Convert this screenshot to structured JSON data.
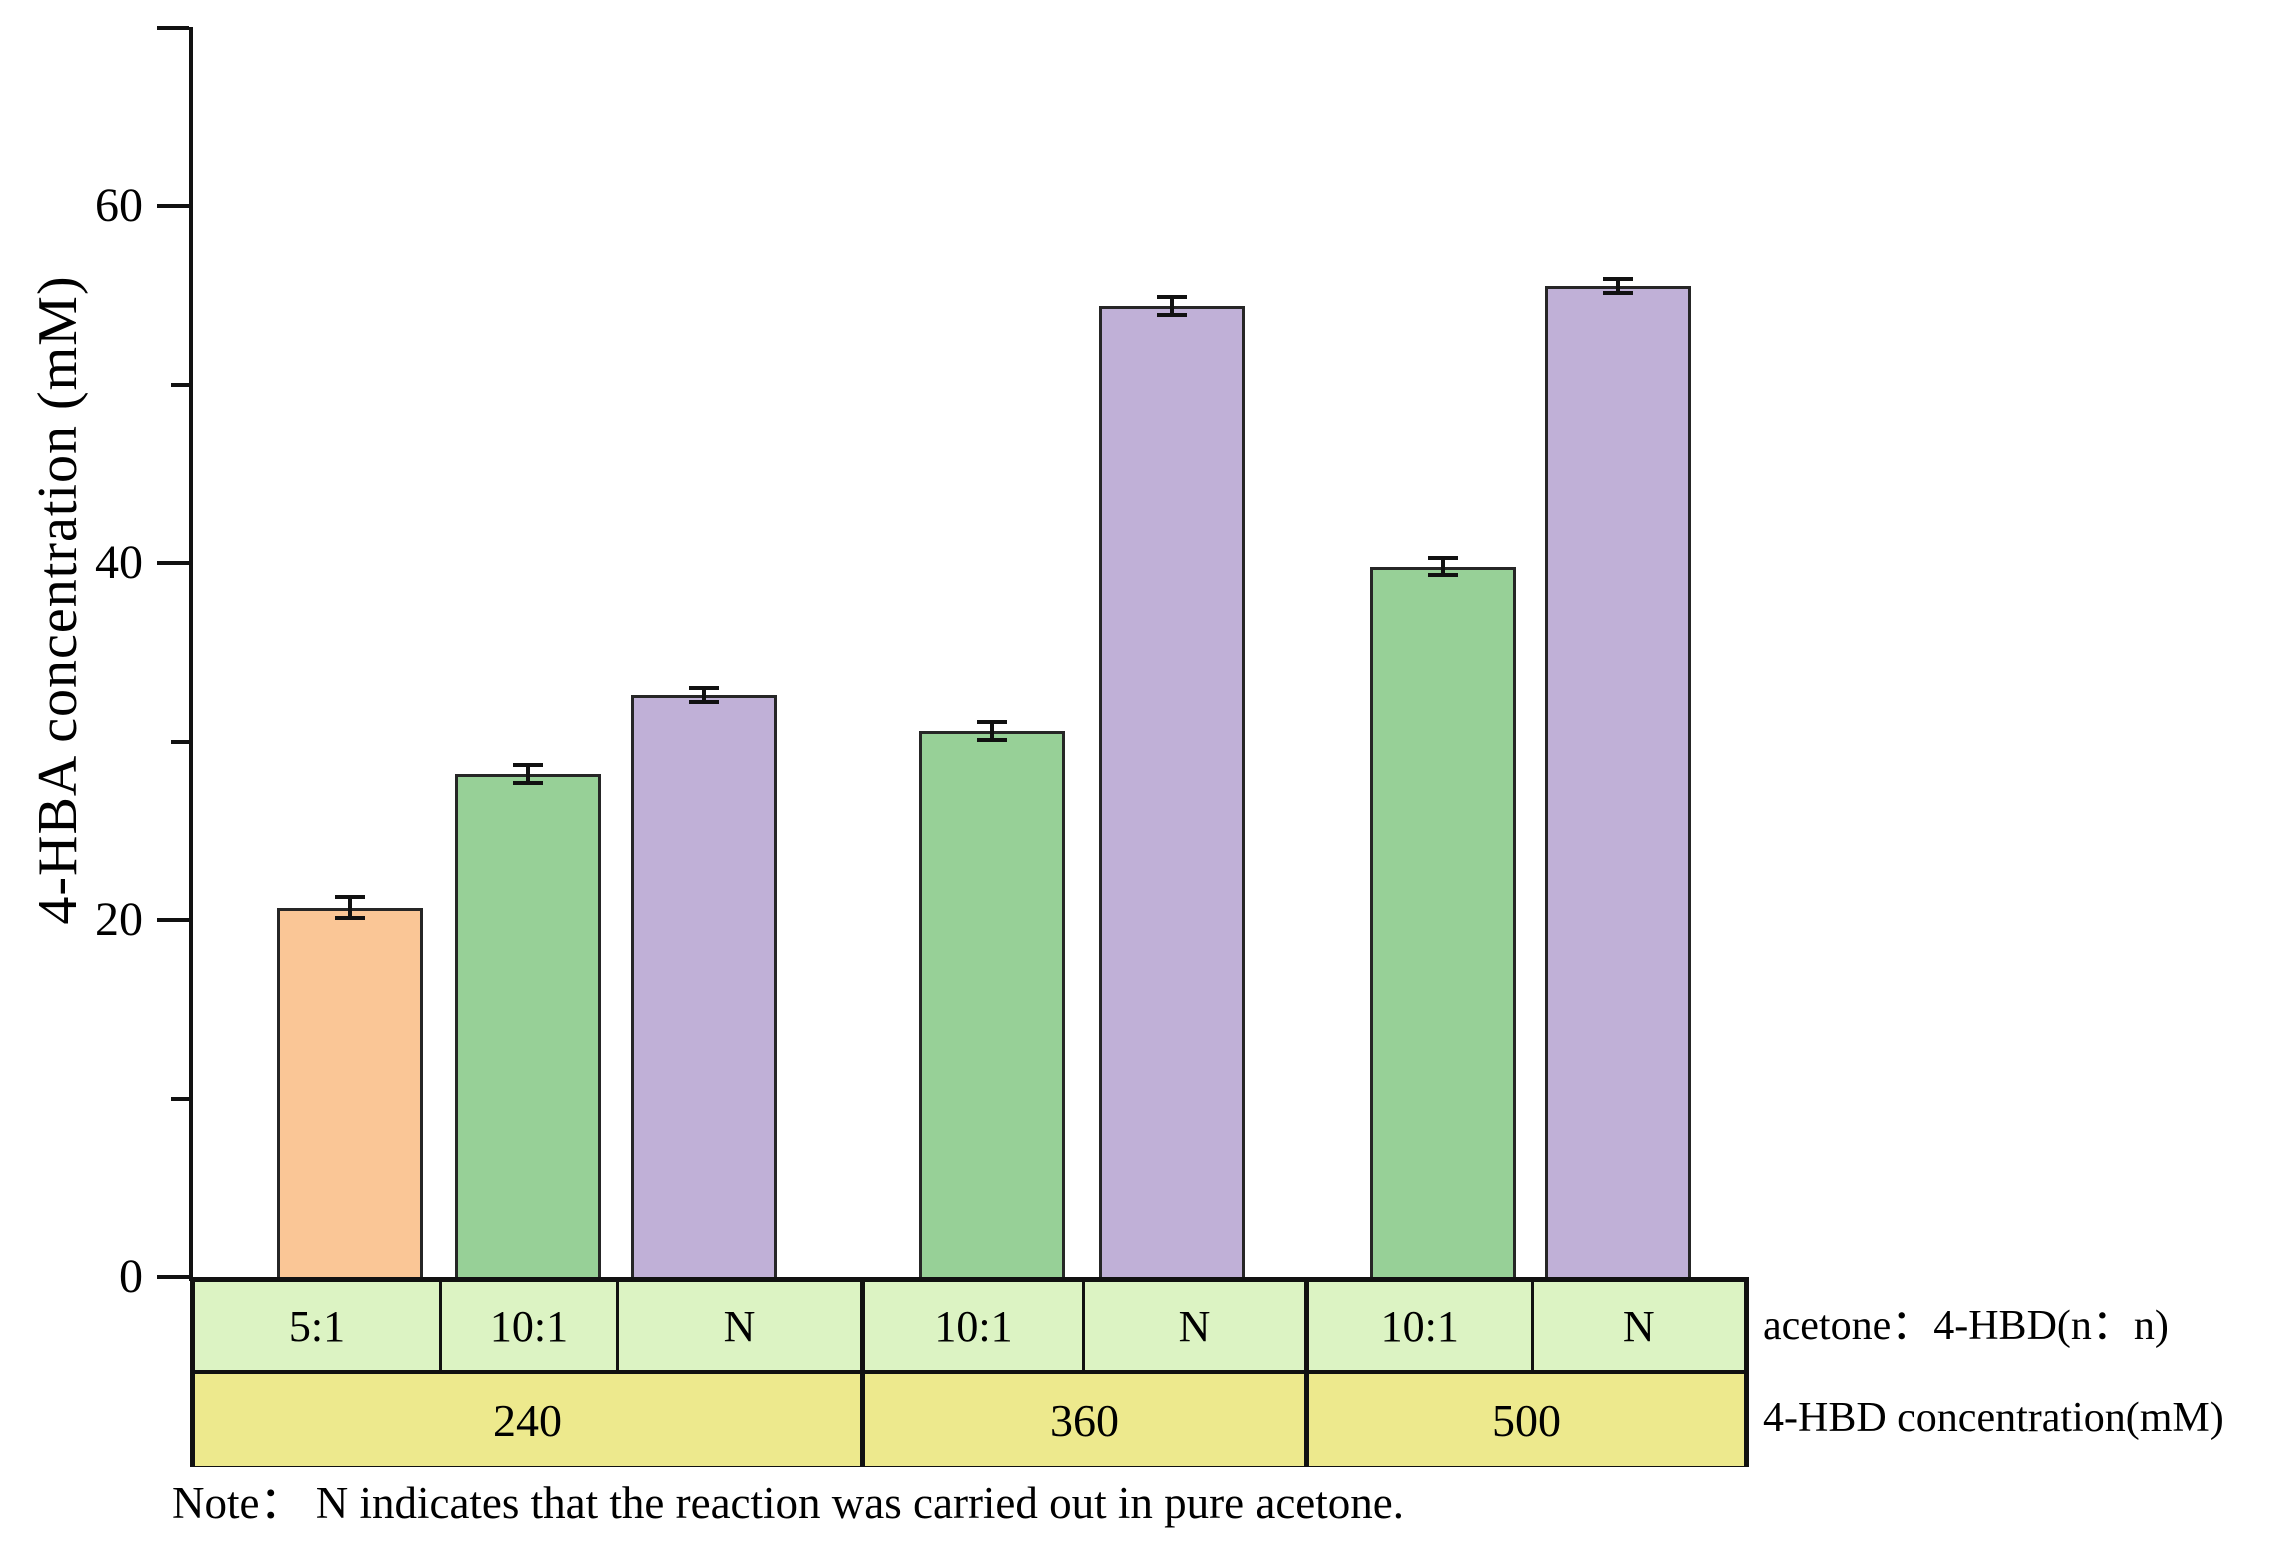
{
  "figure": {
    "note": "Note： N indicates that the reaction was carried out in pure acetone.",
    "row_labels": {
      "ratio_axis": "acetone：4-HBD(n：n)",
      "concentration_axis": "4-HBD concentration(mM)"
    }
  },
  "chart_data": {
    "type": "bar",
    "title": "",
    "xlabel": "4-HBD concentration(mM)",
    "ylabel": "4-HBA concentration (mM)",
    "ylim": [
      0,
      70
    ],
    "yticks_major": [
      0,
      20,
      40,
      60
    ],
    "yticks_minor": [
      10,
      30,
      50,
      70
    ],
    "grid": false,
    "legend": "none",
    "bars": [
      {
        "group": "240",
        "ratio": "5:1",
        "value": 20.7,
        "error": 0.6,
        "color": "orange"
      },
      {
        "group": "240",
        "ratio": "10:1",
        "value": 28.2,
        "error": 0.5,
        "color": "green"
      },
      {
        "group": "240",
        "ratio": "N",
        "value": 32.6,
        "error": 0.4,
        "color": "purple"
      },
      {
        "group": "360",
        "ratio": "10:1",
        "value": 30.6,
        "error": 0.5,
        "color": "green"
      },
      {
        "group": "360",
        "ratio": "N",
        "value": 54.4,
        "error": 0.5,
        "color": "purple"
      },
      {
        "group": "500",
        "ratio": "10:1",
        "value": 39.8,
        "error": 0.5,
        "color": "green"
      },
      {
        "group": "500",
        "ratio": "N",
        "value": 55.5,
        "error": 0.4,
        "color": "purple"
      }
    ],
    "x_table": {
      "row1": [
        "5:1",
        "10:1",
        "N",
        "10:1",
        "N",
        "10:1",
        "N"
      ],
      "row2": [
        {
          "label": "240",
          "span": 3
        },
        {
          "label": "360",
          "span": 2
        },
        {
          "label": "500",
          "span": 2
        }
      ],
      "row1_label": "acetone：4-HBD(n：n)",
      "row2_label": "4-HBD concentration(mM)"
    }
  },
  "colors": {
    "orange": "#FAC696",
    "green": "#97D097",
    "purple": "#C0B0D7",
    "row1_bg": "#DCF3C3",
    "row2_bg": "#EDE98D",
    "axis": "#111111",
    "bar_border": "#262626",
    "text": "#000000"
  }
}
